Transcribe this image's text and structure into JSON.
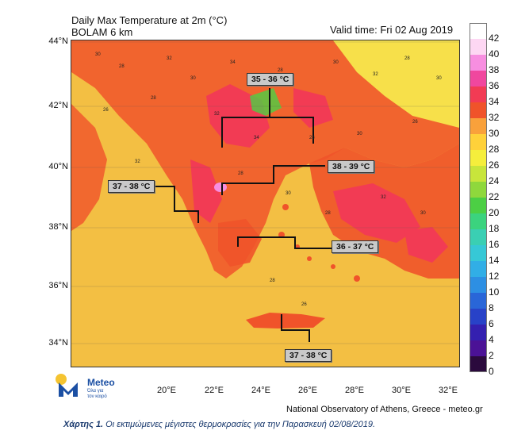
{
  "title": {
    "line1": "Daily Max Temperature at 2m (°C)",
    "line2": "BOLAM 6 km"
  },
  "valid_time": "Valid time: Fri 02 Aug 2019",
  "lat_labels": [
    "44°N",
    "42°N",
    "40°N",
    "38°N",
    "36°N",
    "34°N"
  ],
  "lon_labels": [
    "20°E",
    "22°E",
    "24°E",
    "26°E",
    "28°E",
    "30°E",
    "32°E"
  ],
  "callouts": [
    {
      "text": "35 - 36 °C"
    },
    {
      "text": "38 - 39 °C"
    },
    {
      "text": "37 - 38 °C"
    },
    {
      "text": "36 - 37 °C"
    },
    {
      "text": "37 - 38 °C"
    }
  ],
  "legend": {
    "labels": [
      "42",
      "40",
      "38",
      "36",
      "34",
      "32",
      "30",
      "28",
      "26",
      "24",
      "22",
      "20",
      "18",
      "16",
      "14",
      "12",
      "10",
      "8",
      "6",
      "4",
      "2",
      "0"
    ],
    "colors": [
      "#ffffff",
      "#fdd7f3",
      "#f78ee0",
      "#f0479e",
      "#f23b54",
      "#f0532a",
      "#f9a13b",
      "#ffd13a",
      "#f5ee3c",
      "#c8e53b",
      "#8fd83c",
      "#4ccf44",
      "#3bd37e",
      "#3acfb3",
      "#36c8d6",
      "#31aee6",
      "#2d8fe3",
      "#2966d8",
      "#2842c8",
      "#3420b0",
      "#4b1296",
      "#2b0a3d"
    ]
  },
  "logo": {
    "name": "Meteo",
    "tagline_line1": "Όλα για",
    "tagline_line2": "τον καιρό"
  },
  "credit": "National Observatory of Athens, Greece - meteo.gr",
  "caption": {
    "bold": "Χάρτης 1.",
    "text": " Οι εκτιμώμενες μέγιστες θερμοκρασίες για την Παρασκευή 02/08/2019."
  },
  "map_numbers": [
    "30",
    "28",
    "32",
    "30",
    "34",
    "28",
    "30",
    "32",
    "28",
    "30",
    "26",
    "28",
    "32",
    "34",
    "28",
    "30",
    "26",
    "32",
    "28",
    "30",
    "28",
    "32",
    "30",
    "28",
    "26"
  ],
  "colors": {
    "sea": "#f3bf43",
    "land_warm": "#f0532a",
    "land_hot": "#f23b54",
    "land_cool": "#ffd13a",
    "sea_north": "#f7e04a",
    "callout_bg": "#c9c9c9"
  }
}
